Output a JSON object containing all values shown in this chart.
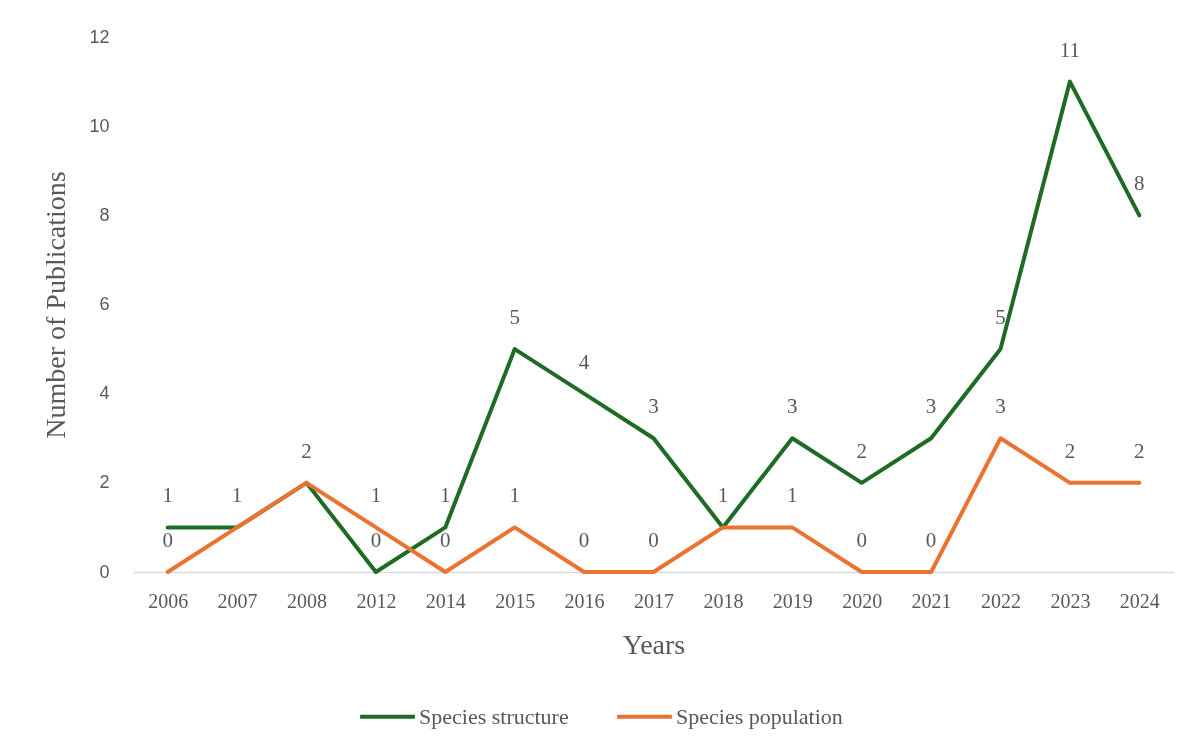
{
  "chart_data": {
    "type": "line",
    "xlabel": "Years",
    "ylabel": "Number of Publications",
    "categories": [
      "2006",
      "2007",
      "2008",
      "2012",
      "2014",
      "2015",
      "2016",
      "2017",
      "2018",
      "2019",
      "2020",
      "2021",
      "2022",
      "2023",
      "2024"
    ],
    "series": [
      {
        "name": "Species structure",
        "color": "#1e6b23",
        "values": [
          1,
          1,
          2,
          0,
          1,
          5,
          4,
          3,
          1,
          3,
          2,
          3,
          5,
          11,
          8
        ],
        "value_labels": [
          "1",
          "1",
          "2",
          "0",
          "1",
          "5",
          "4",
          "3",
          "1",
          "3",
          "2",
          "3",
          "5",
          "11",
          "8"
        ]
      },
      {
        "name": "Species population",
        "color": "#eb7331",
        "values": [
          0,
          1,
          2,
          1,
          0,
          1,
          0,
          0,
          1,
          1,
          0,
          0,
          3,
          2,
          2
        ],
        "value_labels": [
          "0",
          null,
          null,
          "1",
          "0",
          "1",
          "0",
          "0",
          null,
          "1",
          "0",
          "0",
          "3",
          "2",
          "2"
        ]
      }
    ],
    "ylim": [
      0,
      12
    ],
    "yticks": [
      0,
      2,
      4,
      6,
      8,
      10,
      12
    ],
    "grid": false,
    "legend": "bottom",
    "marker": "none",
    "line_style": "solid"
  }
}
